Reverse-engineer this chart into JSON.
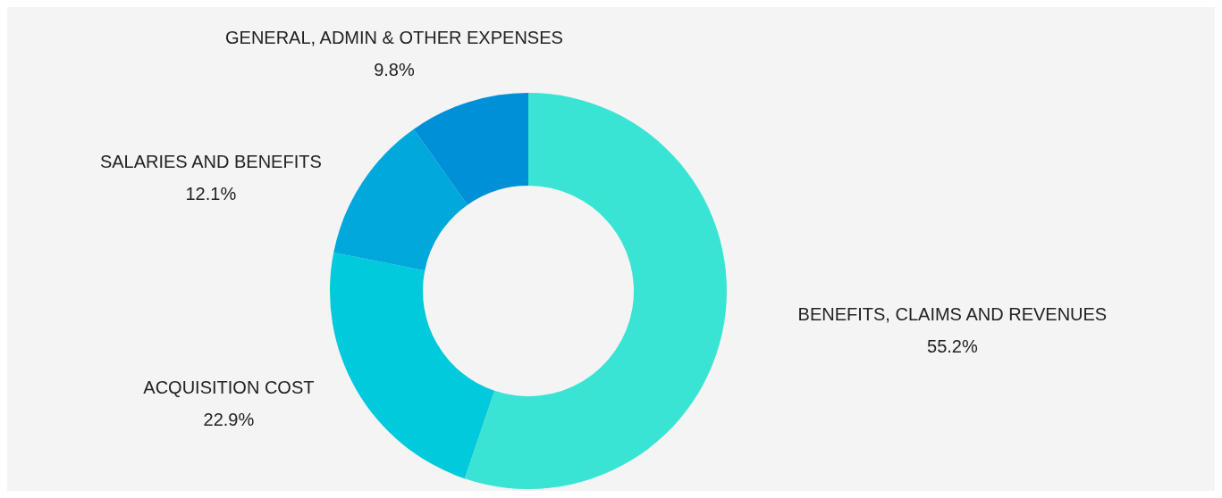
{
  "chart_data": {
    "type": "donut",
    "categories": [
      "BENEFITS, CLAIMS AND REVENUES",
      "ACQUISITION COST",
      "SALARIES AND BENEFITS",
      "GENERAL, ADMIN & OTHER EXPENSES"
    ],
    "values": [
      55.2,
      22.9,
      12.1,
      9.8
    ],
    "colors": [
      "#3ae4d4",
      "#00cadc",
      "#00a8dc",
      "#0090d8"
    ],
    "value_labels": [
      "55.2%",
      "22.9%",
      "12.1%",
      "9.8%"
    ]
  }
}
